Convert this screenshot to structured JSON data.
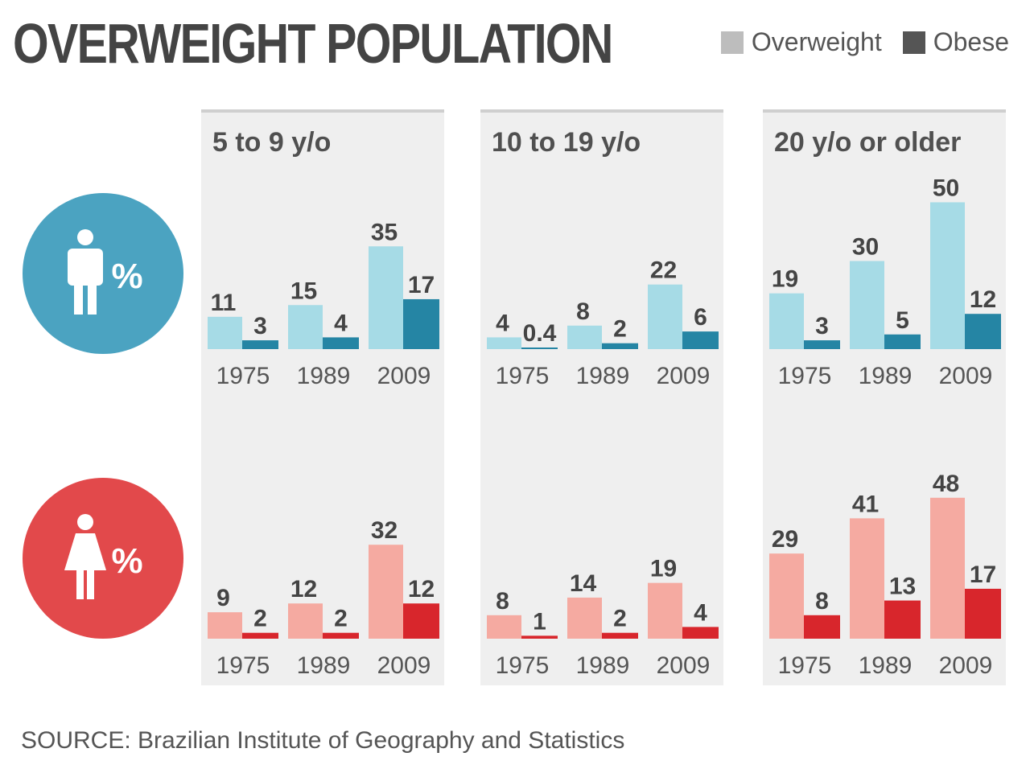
{
  "title": "OVERWEIGHT POPULATION",
  "legend": {
    "overweight": "Overweight",
    "obese": "Obese"
  },
  "source": "SOURCE: Brazilian Institute of Geography and Statistics",
  "colors": {
    "panel_bg": "#efefef",
    "male_overweight": "#a6dbe6",
    "male_obese": "#2585a4",
    "female_overweight": "#f5aaa1",
    "female_obese": "#d8262c",
    "male_circle": "#4ba3c1",
    "female_circle": "#e2494b",
    "legend_overweight": "#bdbdbd",
    "legend_obese": "#555555"
  },
  "chart_data": {
    "type": "bar",
    "groups": [
      "5 to 9 y/o",
      "10 to 19 y/o",
      "20 y/o or older"
    ],
    "categories": [
      "1975",
      "1989",
      "2009"
    ],
    "series_names": [
      "Overweight",
      "Obese"
    ],
    "unit_label": "%",
    "rows": [
      {
        "sex": "male",
        "icon": "male-person-icon",
        "panels": [
          {
            "overweight": [
              11,
              15,
              35
            ],
            "obese": [
              3,
              4,
              17
            ]
          },
          {
            "overweight": [
              4,
              8,
              22
            ],
            "obese": [
              0.4,
              2,
              6
            ]
          },
          {
            "overweight": [
              19,
              30,
              50
            ],
            "obese": [
              3,
              5,
              12
            ]
          }
        ]
      },
      {
        "sex": "female",
        "icon": "female-person-icon",
        "panels": [
          {
            "overweight": [
              9,
              12,
              32
            ],
            "obese": [
              2,
              2,
              12
            ]
          },
          {
            "overweight": [
              8,
              14,
              19
            ],
            "obese": [
              1,
              2,
              4
            ]
          },
          {
            "overweight": [
              29,
              41,
              48
            ],
            "obese": [
              8,
              13,
              17
            ]
          }
        ]
      }
    ]
  }
}
